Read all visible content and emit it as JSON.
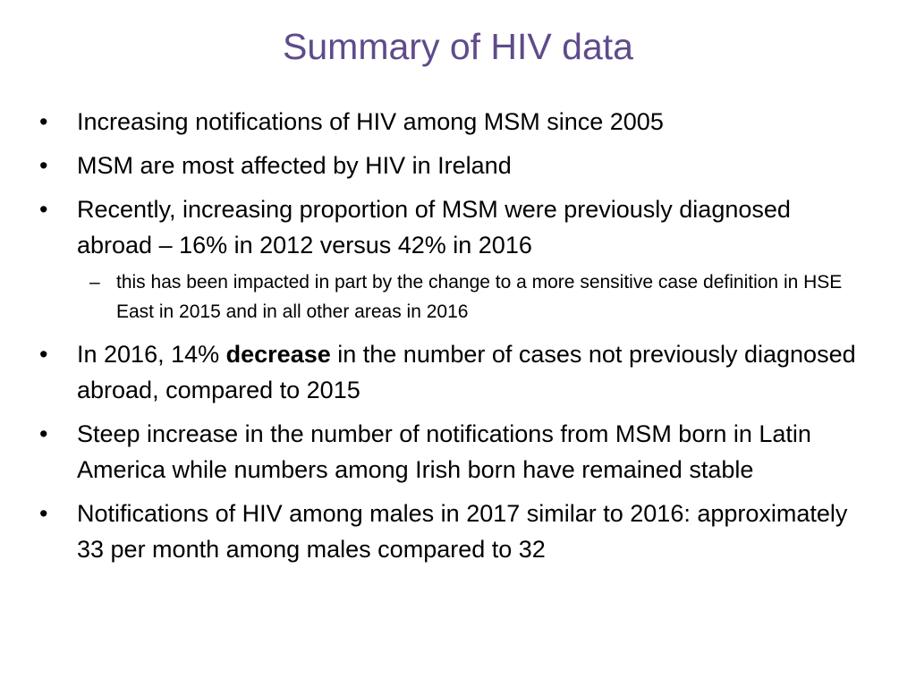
{
  "slide": {
    "title": "Summary of HIV data",
    "title_color": "#5f4b8b",
    "bullet_marker": "•",
    "sub_marker": "–",
    "bullets": [
      {
        "text": "Increasing notifications of HIV among MSM since 2005"
      },
      {
        "text": "MSM are most affected by HIV in Ireland"
      },
      {
        "text": "Recently, increasing proportion of MSM were previously diagnosed abroad – 16% in 2012 versus 42% in 2016"
      },
      {
        "sub_text": "this has been impacted in part by the change to a more sensitive case definition in HSE East in 2015 and in all other areas in 2016"
      },
      {
        "text_before": "In 2016, 14% ",
        "text_bold": "decrease",
        "text_after": " in the number of cases not previously diagnosed abroad, compared to 2015"
      },
      {
        "text": "Steep increase in the number of notifications from MSM born in Latin America while numbers among Irish born have remained stable"
      },
      {
        "text": "Notifications of HIV among males in 2017 similar to 2016: approximately 33 per month among males compared to 32"
      }
    ]
  }
}
